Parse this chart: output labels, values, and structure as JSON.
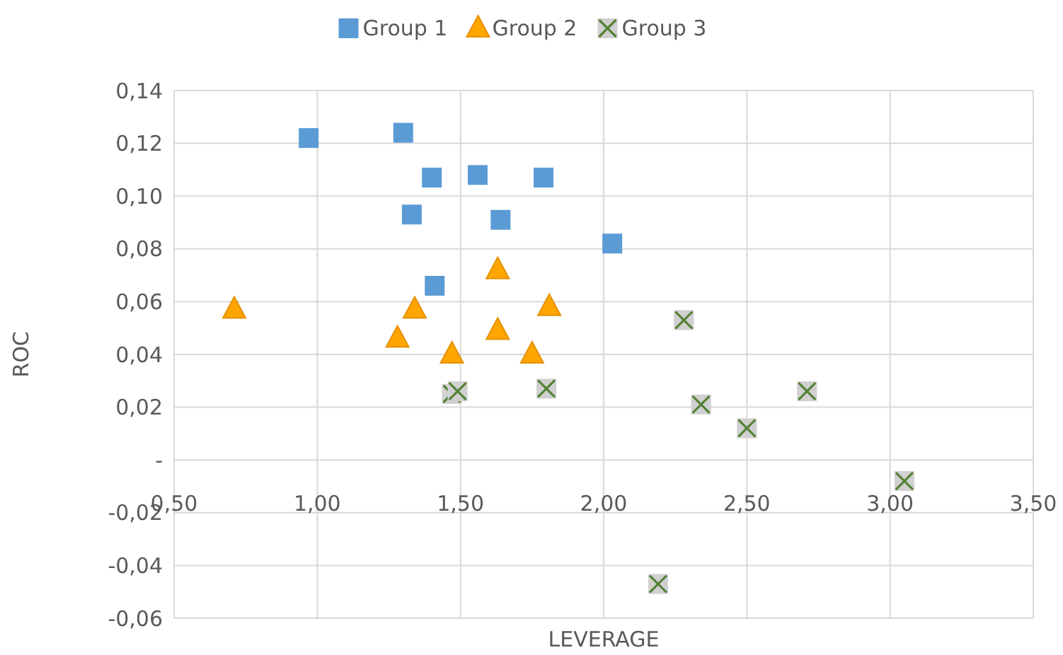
{
  "chart_data": {
    "type": "scatter",
    "xlabel": "LEVERAGE",
    "ylabel": "ROC",
    "legend": "top",
    "grid": true,
    "xlim": [
      0.5,
      3.5
    ],
    "xticks": [
      {
        "value": 0.5,
        "label": "0,50"
      },
      {
        "value": 1,
        "label": "1,00"
      },
      {
        "value": 1.5,
        "label": "1,50"
      },
      {
        "value": 2,
        "label": "2,00"
      },
      {
        "value": 2.5,
        "label": "2,50"
      },
      {
        "value": 3,
        "label": "3,00"
      },
      {
        "value": 3.5,
        "label": "3,50"
      }
    ],
    "ylim": [
      -0.06,
      0.14
    ],
    "yticks": [
      {
        "value": -0.06,
        "label": "-0,06"
      },
      {
        "value": -0.04,
        "label": "-0,04"
      },
      {
        "value": -0.02,
        "label": "-0,02"
      },
      {
        "value": 0,
        "label": "-"
      },
      {
        "value": 0.02,
        "label": "0,02"
      },
      {
        "value": 0.04,
        "label": "0,04"
      },
      {
        "value": 0.06,
        "label": "0,06"
      },
      {
        "value": 0.08,
        "label": "0,08"
      },
      {
        "value": 0.1,
        "label": "0,10"
      },
      {
        "value": 0.12,
        "label": "0,12"
      },
      {
        "value": 0.14,
        "label": "0,14"
      }
    ],
    "series": [
      {
        "name": "Group 1",
        "color": "#5b9bd5",
        "marker": "square",
        "x": [
          0.97,
          1.3,
          1.4,
          1.56,
          1.79,
          1.33,
          1.64,
          2.03,
          1.41
        ],
        "values": [
          0.122,
          0.124,
          0.107,
          0.108,
          0.107,
          0.093,
          0.091,
          0.082,
          0.066
        ]
      },
      {
        "name": "Group 2",
        "color": "#ffa500",
        "marker": "triangle",
        "x": [
          0.71,
          1.28,
          1.34,
          1.47,
          1.63,
          1.63,
          1.75,
          1.81
        ],
        "values": [
          0.057,
          0.046,
          0.057,
          0.04,
          0.049,
          0.072,
          0.04,
          0.058
        ]
      },
      {
        "name": "Group 3",
        "color": "#548235",
        "marker": "cross",
        "x": [
          1.47,
          1.49,
          1.8,
          2.28,
          2.34,
          2.5,
          2.71,
          3.05,
          2.19
        ],
        "values": [
          0.025,
          0.026,
          0.027,
          0.053,
          0.021,
          0.012,
          0.026,
          -0.008,
          -0.047
        ]
      }
    ]
  }
}
